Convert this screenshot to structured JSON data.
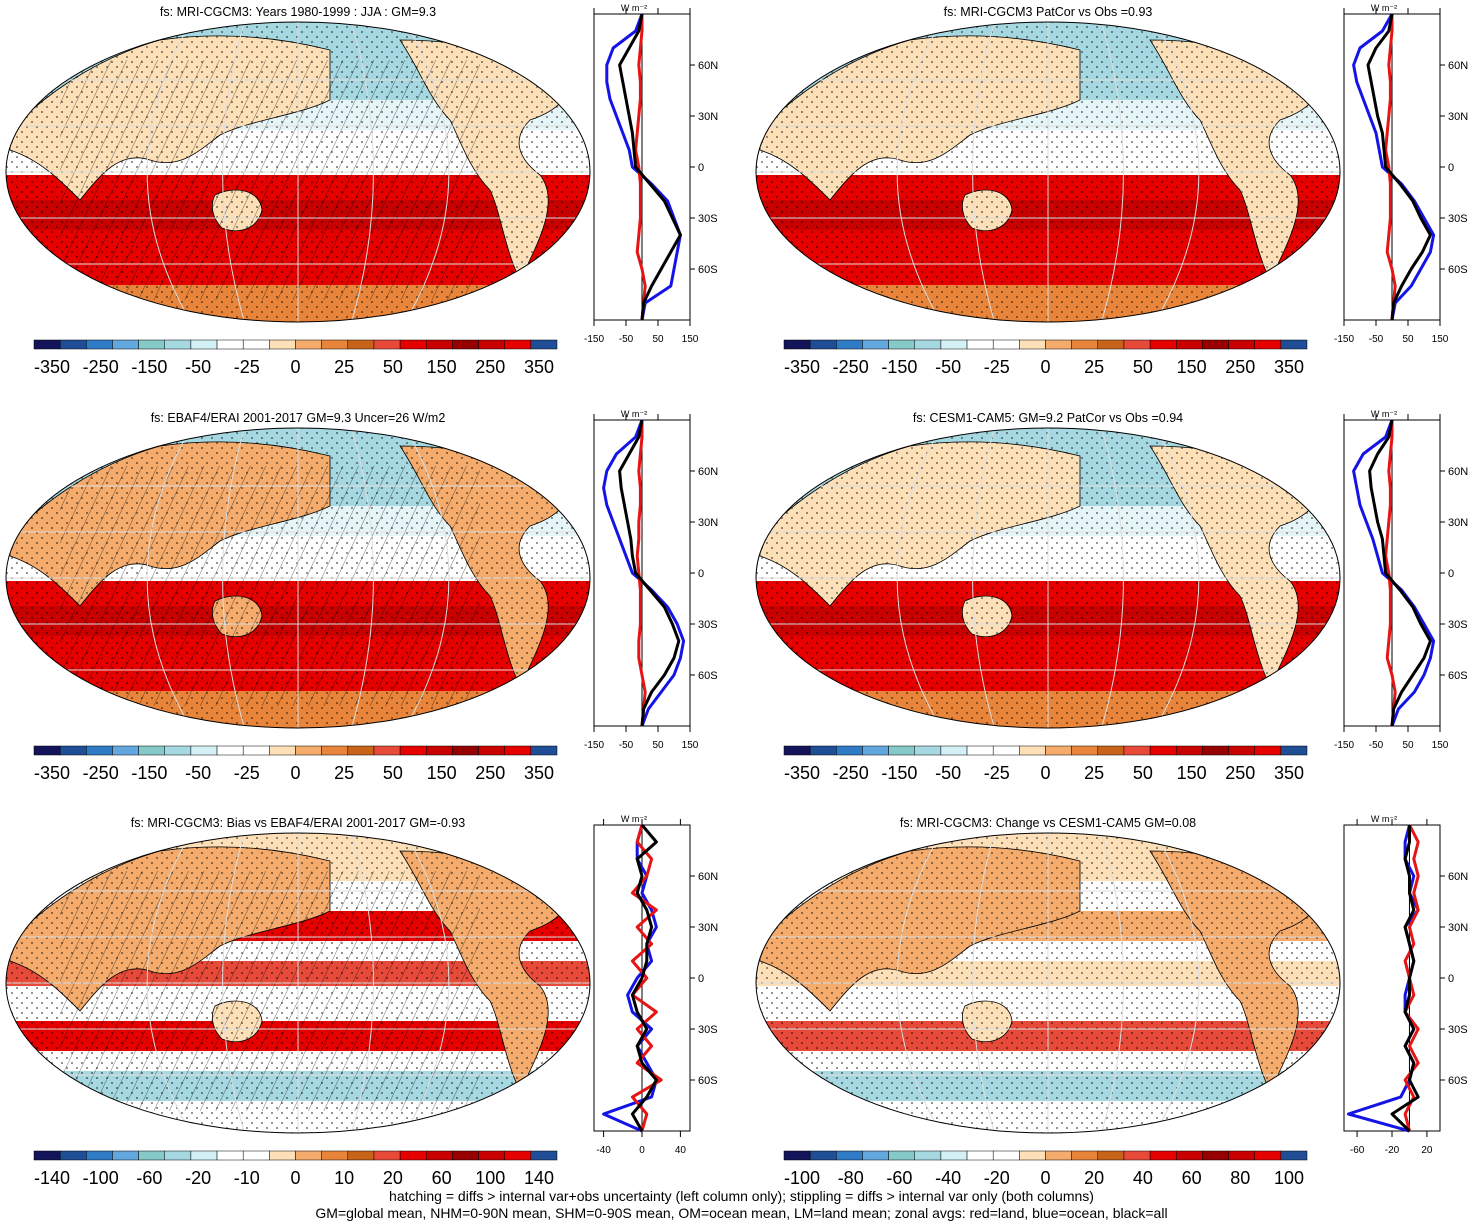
{
  "figure": {
    "footer_line1": "hatching = diffs > internal var+obs uncertainty (left column only); stippling = diffs > internal var only (both columns)",
    "footer_line2": "GM=global mean, NHM=0-90N mean, SHM=0-90S mean, OM=ocean mean, LM=land mean; zonal avgs: red=land, blue=ocean, black=all"
  },
  "colors": {
    "ocean_line": "#1414e6",
    "land_line": "#e61414",
    "all_line": "#000000",
    "scale": [
      "#14145a",
      "#1f4e96",
      "#2f7bc6",
      "#63a7df",
      "#86c9c9",
      "#a6d8e2",
      "#d3f0f5",
      "#ffffff",
      "#ffffff",
      "#fde0b8",
      "#f4ab6c",
      "#e8853a",
      "#c8641a",
      "#e84a3a",
      "#e60000",
      "#c80000",
      "#960000",
      "#c80000",
      "#e60000",
      "#1f4e96"
    ]
  },
  "chart_data": [
    {
      "type": "heatmap",
      "title": "fs: MRI-CGCM3: Years 1980-1999 : JJA : GM=9.3",
      "colorbar_labels": [
        "-350",
        "-250",
        "-150",
        "-50",
        "-25",
        "0",
        "25",
        "50",
        "150",
        "250",
        "350"
      ],
      "profile": {
        "units": "W m⁻²",
        "x_ticks": [
          "-150",
          "-50",
          "50",
          "150"
        ],
        "xlim": [
          -150,
          150
        ],
        "y_ticks": [
          "60N",
          "30N",
          "0",
          "30S",
          "60S"
        ],
        "ylim": [
          -90,
          90
        ],
        "lat": [
          -90,
          -80,
          -70,
          -60,
          -50,
          -40,
          -30,
          -20,
          -10,
          0,
          10,
          20,
          30,
          40,
          50,
          60,
          70,
          80,
          90
        ],
        "series": [
          {
            "name": "ocean",
            "values": [
              0,
              10,
              90,
              100,
              110,
              120,
              100,
              80,
              30,
              -30,
              -40,
              -60,
              -80,
              -100,
              -110,
              -110,
              -90,
              -20,
              0
            ]
          },
          {
            "name": "land",
            "values": [
              0,
              5,
              10,
              0,
              -15,
              -10,
              -5,
              -5,
              -5,
              -10,
              -20,
              -15,
              -10,
              -5,
              -5,
              -10,
              -5,
              0,
              0
            ]
          },
          {
            "name": "all",
            "values": [
              0,
              5,
              30,
              60,
              90,
              120,
              95,
              70,
              25,
              -20,
              -25,
              -30,
              -40,
              -50,
              -60,
              -70,
              -40,
              -10,
              0
            ]
          }
        ]
      }
    },
    {
      "type": "heatmap",
      "title": "fs: MRI-CGCM3 PatCor vs Obs =0.93",
      "colorbar_labels": [
        "-350",
        "-250",
        "-150",
        "-50",
        "-25",
        "0",
        "25",
        "50",
        "150",
        "250",
        "350"
      ],
      "profile": {
        "units": "W m⁻²",
        "x_ticks": [
          "-150",
          "-50",
          "50",
          "150"
        ],
        "xlim": [
          -150,
          150
        ],
        "y_ticks": [
          "60N",
          "30N",
          "0",
          "30S",
          "60S"
        ],
        "ylim": [
          -90,
          90
        ],
        "lat": [
          -90,
          -80,
          -70,
          -60,
          -50,
          -40,
          -30,
          -20,
          -10,
          0,
          10,
          20,
          30,
          40,
          50,
          60,
          70,
          80,
          90
        ],
        "series": [
          {
            "name": "ocean",
            "values": [
              0,
              10,
              60,
              90,
              120,
              130,
              100,
              70,
              30,
              -30,
              -40,
              -50,
              -70,
              -90,
              -110,
              -120,
              -100,
              -30,
              0
            ]
          },
          {
            "name": "land",
            "values": [
              0,
              5,
              10,
              0,
              -15,
              -10,
              -5,
              -5,
              -5,
              -10,
              -20,
              -15,
              -10,
              -5,
              -5,
              -10,
              -5,
              0,
              0
            ]
          },
          {
            "name": "all",
            "values": [
              0,
              5,
              30,
              60,
              95,
              120,
              90,
              65,
              25,
              -20,
              -25,
              -30,
              -45,
              -55,
              -65,
              -75,
              -50,
              -10,
              0
            ]
          }
        ]
      }
    },
    {
      "type": "heatmap",
      "title": "fs: EBAF4/ERAI 2001-2017 GM=9.3 Uncer=26 W/m2",
      "colorbar_labels": [
        "-350",
        "-250",
        "-150",
        "-50",
        "-25",
        "0",
        "25",
        "50",
        "150",
        "250",
        "350"
      ],
      "profile": {
        "units": "W m⁻²",
        "x_ticks": [
          "-150",
          "-50",
          "50",
          "150"
        ],
        "xlim": [
          -150,
          150
        ],
        "y_ticks": [
          "60N",
          "30N",
          "0",
          "30S",
          "60S"
        ],
        "ylim": [
          -90,
          90
        ],
        "lat": [
          -90,
          -80,
          -70,
          -60,
          -50,
          -40,
          -30,
          -20,
          -10,
          0,
          10,
          20,
          30,
          40,
          50,
          60,
          70,
          80,
          90
        ],
        "series": [
          {
            "name": "ocean",
            "values": [
              0,
              20,
              60,
              100,
              120,
              130,
              110,
              80,
              30,
              -30,
              -50,
              -70,
              -90,
              -110,
              -120,
              -110,
              -80,
              -20,
              0
            ]
          },
          {
            "name": "land",
            "values": [
              0,
              5,
              10,
              0,
              -10,
              -10,
              -5,
              -5,
              -5,
              -10,
              -15,
              -10,
              -10,
              -5,
              -5,
              -10,
              -5,
              0,
              0
            ]
          },
          {
            "name": "all",
            "values": [
              0,
              5,
              30,
              70,
              100,
              115,
              95,
              70,
              25,
              -20,
              -30,
              -35,
              -45,
              -55,
              -65,
              -70,
              -40,
              -10,
              0
            ]
          }
        ]
      }
    },
    {
      "type": "heatmap",
      "title": "fs: CESM1-CAM5: GM=9.2 PatCor vs Obs =0.94",
      "colorbar_labels": [
        "-350",
        "-250",
        "-150",
        "-50",
        "-25",
        "0",
        "25",
        "50",
        "150",
        "250",
        "350"
      ],
      "profile": {
        "units": "W m⁻²",
        "x_ticks": [
          "-150",
          "-50",
          "50",
          "150"
        ],
        "xlim": [
          -150,
          150
        ],
        "y_ticks": [
          "60N",
          "30N",
          "0",
          "30S",
          "60S"
        ],
        "ylim": [
          -90,
          90
        ],
        "lat": [
          -90,
          -80,
          -70,
          -60,
          -50,
          -40,
          -30,
          -20,
          -10,
          0,
          10,
          20,
          30,
          40,
          50,
          60,
          70,
          80,
          90
        ],
        "series": [
          {
            "name": "ocean",
            "values": [
              0,
              20,
              70,
              100,
              120,
              130,
              100,
              70,
              30,
              -30,
              -45,
              -60,
              -80,
              -100,
              -110,
              -120,
              -90,
              -20,
              0
            ]
          },
          {
            "name": "land",
            "values": [
              0,
              5,
              10,
              0,
              -15,
              -10,
              -5,
              -5,
              -5,
              -10,
              -20,
              -15,
              -10,
              -5,
              -5,
              -10,
              -5,
              0,
              0
            ]
          },
          {
            "name": "all",
            "values": [
              0,
              5,
              30,
              65,
              100,
              120,
              90,
              65,
              25,
              -20,
              -25,
              -30,
              -45,
              -55,
              -65,
              -70,
              -45,
              -10,
              0
            ]
          }
        ]
      }
    },
    {
      "type": "heatmap",
      "title": "fs: MRI-CGCM3: Bias vs EBAF4/ERAI 2001-2017 GM=-0.93",
      "colorbar_labels": [
        "-140",
        "-100",
        "-60",
        "-20",
        "-10",
        "0",
        "10",
        "20",
        "60",
        "100",
        "140"
      ],
      "profile": {
        "units": "W m⁻²",
        "x_ticks": [
          "-40",
          "0",
          "40"
        ],
        "xlim": [
          -50,
          50
        ],
        "y_ticks": [
          "60N",
          "30N",
          "0",
          "30S",
          "60S"
        ],
        "ylim": [
          -90,
          90
        ],
        "lat": [
          -90,
          -80,
          -70,
          -60,
          -50,
          -40,
          -30,
          -20,
          -10,
          0,
          10,
          20,
          30,
          40,
          50,
          60,
          70,
          80,
          90
        ],
        "series": [
          {
            "name": "ocean",
            "values": [
              0,
              -40,
              10,
              15,
              5,
              -5,
              10,
              -10,
              -15,
              -5,
              10,
              5,
              15,
              10,
              0,
              5,
              -5,
              -5,
              0
            ]
          },
          {
            "name": "land",
            "values": [
              0,
              5,
              -10,
              20,
              -5,
              10,
              -5,
              15,
              -10,
              5,
              -10,
              10,
              -5,
              15,
              -10,
              5,
              10,
              -5,
              0
            ]
          },
          {
            "name": "all",
            "values": [
              0,
              -10,
              5,
              15,
              0,
              -5,
              5,
              -5,
              -10,
              0,
              5,
              5,
              10,
              5,
              -5,
              0,
              -5,
              15,
              0
            ]
          }
        ]
      }
    },
    {
      "type": "heatmap",
      "title": "fs: MRI-CGCM3: Change vs CESM1-CAM5 GM=0.08",
      "colorbar_labels": [
        "-100",
        "-80",
        "-60",
        "-40",
        "-20",
        "0",
        "20",
        "40",
        "60",
        "80",
        "100"
      ],
      "profile": {
        "units": "W m⁻²",
        "x_ticks": [
          "-60",
          "-20",
          "20"
        ],
        "xlim": [
          -75,
          35
        ],
        "y_ticks": [
          "60N",
          "30N",
          "0",
          "30S",
          "60S"
        ],
        "ylim": [
          -90,
          90
        ],
        "lat": [
          -90,
          -80,
          -70,
          -60,
          -50,
          -40,
          -30,
          -20,
          -10,
          0,
          10,
          20,
          30,
          40,
          50,
          60,
          70,
          80,
          90
        ],
        "series": [
          {
            "name": "ocean",
            "values": [
              0,
              -70,
              -10,
              0,
              5,
              -5,
              5,
              -5,
              -5,
              0,
              5,
              0,
              -5,
              10,
              0,
              5,
              -5,
              -5,
              0
            ],
            "x_min_note": ""
          },
          {
            "name": "land",
            "values": [
              0,
              -5,
              5,
              -5,
              10,
              0,
              10,
              -5,
              5,
              0,
              -5,
              5,
              0,
              10,
              5,
              10,
              5,
              10,
              0
            ]
          },
          {
            "name": "all",
            "values": [
              0,
              -20,
              10,
              0,
              5,
              -5,
              5,
              -5,
              0,
              0,
              5,
              0,
              -5,
              5,
              0,
              0,
              -5,
              0,
              0
            ]
          }
        ]
      }
    }
  ]
}
